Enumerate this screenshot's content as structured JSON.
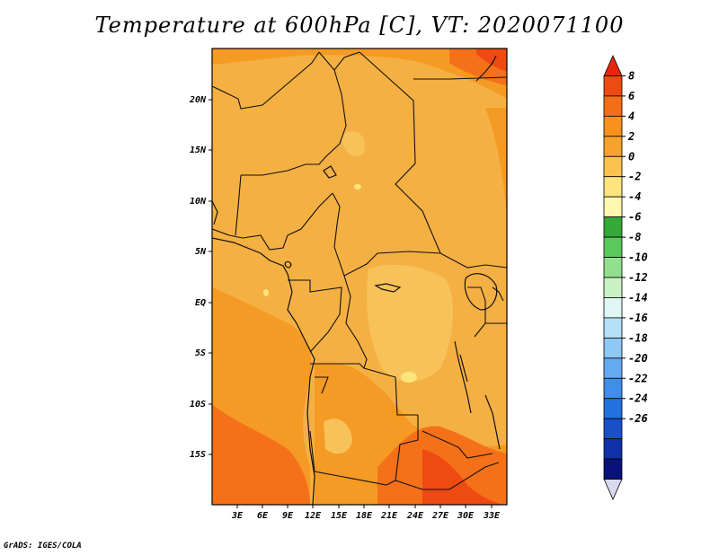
{
  "title": "Temperature at 600hPa [C], VT: 2020071100",
  "credit": "GrADS: IGES/COLA",
  "map": {
    "lat_labels": [
      "20N",
      "15N",
      "10N",
      "5N",
      "EQ",
      "5S",
      "10S",
      "15S"
    ],
    "lon_labels": [
      "3E",
      "6E",
      "9E",
      "12E",
      "15E",
      "18E",
      "21E",
      "24E",
      "27E",
      "30E",
      "33E"
    ],
    "base_color": "#f5b043"
  },
  "colorbar": {
    "labels": [
      "8",
      "6",
      "4",
      "2",
      "0",
      "-2",
      "-4",
      "-6",
      "-8",
      "-10",
      "-12",
      "-14",
      "-16",
      "-18",
      "-20",
      "-22",
      "-24",
      "-26"
    ],
    "colors": [
      "#e8260d",
      "#ef4a12",
      "#f46e18",
      "#f8911e",
      "#f7a22a",
      "#f9c34d",
      "#fde57b",
      "#fff7b0",
      "#34a938",
      "#5cc95c",
      "#93df8d",
      "#c8f2c4",
      "#e0f6f5",
      "#b4e0f8",
      "#8dc8f6",
      "#63aaf1",
      "#3f8ee8",
      "#2271dc",
      "#1750c8",
      "#0f31a8",
      "#07127a",
      "#dad8f1"
    ]
  }
}
